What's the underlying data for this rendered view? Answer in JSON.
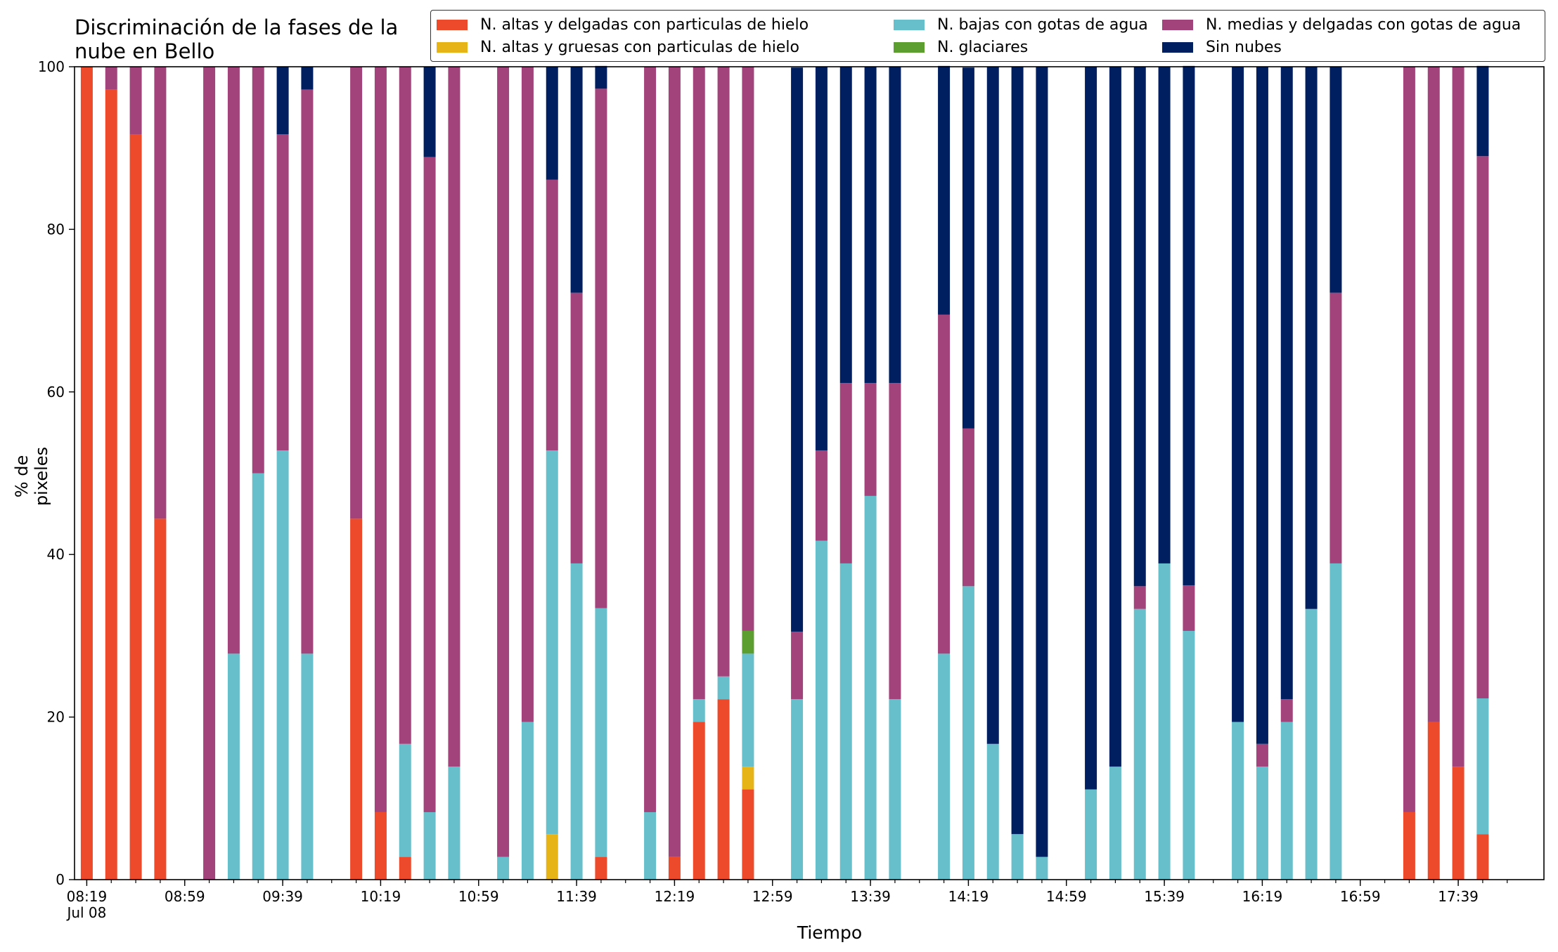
{
  "chart_data": {
    "type": "bar",
    "stacked": true,
    "title": "Discriminación de la fases de la nube en Bello",
    "xlabel": "Tiempo",
    "ylabel": "% de pixeles",
    "ylim": [
      0,
      100
    ],
    "yticks": [
      "0",
      "20",
      "40",
      "60",
      "80",
      "100"
    ],
    "xtick_labels": [
      "08:19",
      "08:59",
      "09:39",
      "10:19",
      "10:59",
      "11:39",
      "12:19",
      "12:59",
      "13:39",
      "14:19",
      "14:59",
      "15:39",
      "16:19",
      "16:59",
      "17:39"
    ],
    "date_label": "Jul 08",
    "legend_position": "top-right",
    "series_keys": [
      "alta_delg",
      "alta_grue",
      "baja",
      "glaciar",
      "media",
      "sin"
    ],
    "series": [
      {
        "key": "alta_delg",
        "name": "N. altas y delgadas con particulas de hielo",
        "color": "#ed4a2c"
      },
      {
        "key": "baja",
        "name": "N. bajas con gotas de agua",
        "color": "#67bfcb"
      },
      {
        "key": "media",
        "name": "N. medias y delgadas con gotas de agua",
        "color": "#a3437b"
      },
      {
        "key": "alta_grue",
        "name": "N. altas y gruesas con particulas de hielo",
        "color": "#e7b418"
      },
      {
        "key": "glaciar",
        "name": "N. glaciares",
        "color": "#5c9e2f"
      },
      {
        "key": "sin",
        "name": "Sin nubes",
        "color": "#001f60"
      }
    ],
    "bars": [
      {
        "time": "08:19",
        "alta_delg": 100,
        "alta_grue": 0,
        "baja": 0,
        "glaciar": 0,
        "media": 0,
        "sin": 0
      },
      {
        "time": "08:29",
        "alta_delg": 97.2,
        "alta_grue": 0,
        "baja": 0,
        "glaciar": 0,
        "media": 2.8,
        "sin": 0
      },
      {
        "time": "08:39",
        "alta_delg": 91.7,
        "alta_grue": 0,
        "baja": 0,
        "glaciar": 0,
        "media": 8.3,
        "sin": 0
      },
      {
        "time": "08:49",
        "alta_delg": 44.4,
        "alta_grue": 0,
        "baja": 0,
        "glaciar": 0,
        "media": 55.6,
        "sin": 0
      },
      {
        "time": "09:09",
        "alta_delg": 0,
        "alta_grue": 0,
        "baja": 0,
        "glaciar": 0,
        "media": 100,
        "sin": 0
      },
      {
        "time": "09:19",
        "alta_delg": 0,
        "alta_grue": 0,
        "baja": 27.8,
        "glaciar": 0,
        "media": 72.2,
        "sin": 0
      },
      {
        "time": "09:29",
        "alta_delg": 0,
        "alta_grue": 0,
        "baja": 50,
        "glaciar": 0,
        "media": 50,
        "sin": 0
      },
      {
        "time": "09:39",
        "alta_delg": 0,
        "alta_grue": 0,
        "baja": 52.8,
        "glaciar": 0,
        "media": 38.9,
        "sin": 8.3
      },
      {
        "time": "09:49",
        "alta_delg": 0,
        "alta_grue": 0,
        "baja": 27.8,
        "glaciar": 0,
        "media": 69.4,
        "sin": 2.8
      },
      {
        "time": "10:09",
        "alta_delg": 44.4,
        "alta_grue": 0,
        "baja": 0,
        "glaciar": 0,
        "media": 55.6,
        "sin": 0
      },
      {
        "time": "10:19",
        "alta_delg": 8.3,
        "alta_grue": 0,
        "baja": 0,
        "glaciar": 0,
        "media": 91.7,
        "sin": 0
      },
      {
        "time": "10:29",
        "alta_delg": 2.8,
        "alta_grue": 0,
        "baja": 13.9,
        "glaciar": 0,
        "media": 83.3,
        "sin": 0
      },
      {
        "time": "10:39",
        "alta_delg": 0,
        "alta_grue": 0,
        "baja": 8.3,
        "glaciar": 0,
        "media": 80.6,
        "sin": 11.1
      },
      {
        "time": "10:49",
        "alta_delg": 0,
        "alta_grue": 0,
        "baja": 13.9,
        "glaciar": 0,
        "media": 86.1,
        "sin": 0
      },
      {
        "time": "11:09",
        "alta_delg": 0,
        "alta_grue": 0,
        "baja": 2.8,
        "glaciar": 0,
        "media": 97.2,
        "sin": 0
      },
      {
        "time": "11:19",
        "alta_delg": 0,
        "alta_grue": 0,
        "baja": 19.4,
        "glaciar": 0,
        "media": 80.6,
        "sin": 0
      },
      {
        "time": "11:29",
        "alta_delg": 0,
        "alta_grue": 5.6,
        "baja": 47.2,
        "glaciar": 0,
        "media": 33.3,
        "sin": 13.9
      },
      {
        "time": "11:39",
        "alta_delg": 0,
        "alta_grue": 0,
        "baja": 38.9,
        "glaciar": 0,
        "media": 33.3,
        "sin": 27.8
      },
      {
        "time": "11:49",
        "alta_delg": 2.8,
        "alta_grue": 0,
        "baja": 30.6,
        "glaciar": 0,
        "media": 63.9,
        "sin": 2.8
      },
      {
        "time": "12:09",
        "alta_delg": 0,
        "alta_grue": 0,
        "baja": 8.3,
        "glaciar": 0,
        "media": 91.7,
        "sin": 0
      },
      {
        "time": "12:19",
        "alta_delg": 2.8,
        "alta_grue": 0,
        "baja": 0,
        "glaciar": 0,
        "media": 97.2,
        "sin": 0
      },
      {
        "time": "12:29",
        "alta_delg": 19.4,
        "alta_grue": 0,
        "baja": 2.8,
        "glaciar": 0,
        "media": 77.8,
        "sin": 0
      },
      {
        "time": "12:39",
        "alta_delg": 22.2,
        "alta_grue": 0,
        "baja": 2.8,
        "glaciar": 0,
        "media": 75,
        "sin": 0
      },
      {
        "time": "12:49",
        "alta_delg": 11.1,
        "alta_grue": 2.8,
        "baja": 13.9,
        "glaciar": 2.8,
        "media": 69.4,
        "sin": 0
      },
      {
        "time": "13:09",
        "alta_delg": 0,
        "alta_grue": 0,
        "baja": 22.2,
        "glaciar": 0,
        "media": 8.3,
        "sin": 69.4
      },
      {
        "time": "13:19",
        "alta_delg": 0,
        "alta_grue": 0,
        "baja": 41.7,
        "glaciar": 0,
        "media": 11.1,
        "sin": 47.2
      },
      {
        "time": "13:29",
        "alta_delg": 0,
        "alta_grue": 0,
        "baja": 38.9,
        "glaciar": 0,
        "media": 22.2,
        "sin": 38.9
      },
      {
        "time": "13:39",
        "alta_delg": 0,
        "alta_grue": 0,
        "baja": 47.2,
        "glaciar": 0,
        "media": 13.9,
        "sin": 38.9
      },
      {
        "time": "13:49",
        "alta_delg": 0,
        "alta_grue": 0,
        "baja": 22.2,
        "glaciar": 0,
        "media": 38.9,
        "sin": 38.9
      },
      {
        "time": "14:09",
        "alta_delg": 0,
        "alta_grue": 0,
        "baja": 27.8,
        "glaciar": 0,
        "media": 41.7,
        "sin": 30.6
      },
      {
        "time": "14:19",
        "alta_delg": 0,
        "alta_grue": 0,
        "baja": 36.1,
        "glaciar": 0,
        "media": 19.4,
        "sin": 44.4
      },
      {
        "time": "14:29",
        "alta_delg": 0,
        "alta_grue": 0,
        "baja": 16.7,
        "glaciar": 0,
        "media": 0,
        "sin": 83.3
      },
      {
        "time": "14:39",
        "alta_delg": 0,
        "alta_grue": 0,
        "baja": 5.6,
        "glaciar": 0,
        "media": 0,
        "sin": 94.4
      },
      {
        "time": "14:49",
        "alta_delg": 0,
        "alta_grue": 0,
        "baja": 2.8,
        "glaciar": 0,
        "media": 0,
        "sin": 97.2
      },
      {
        "time": "15:09",
        "alta_delg": 0,
        "alta_grue": 0,
        "baja": 11.1,
        "glaciar": 0,
        "media": 0,
        "sin": 88.9
      },
      {
        "time": "15:19",
        "alta_delg": 0,
        "alta_grue": 0,
        "baja": 13.9,
        "glaciar": 0,
        "media": 0,
        "sin": 86.1
      },
      {
        "time": "15:29",
        "alta_delg": 0,
        "alta_grue": 0,
        "baja": 33.3,
        "glaciar": 0,
        "media": 2.8,
        "sin": 63.9
      },
      {
        "time": "15:39",
        "alta_delg": 0,
        "alta_grue": 0,
        "baja": 38.9,
        "glaciar": 0,
        "media": 0,
        "sin": 61.1
      },
      {
        "time": "15:49",
        "alta_delg": 0,
        "alta_grue": 0,
        "baja": 30.6,
        "glaciar": 0,
        "media": 5.6,
        "sin": 63.9
      },
      {
        "time": "16:09",
        "alta_delg": 0,
        "alta_grue": 0,
        "baja": 19.4,
        "glaciar": 0,
        "media": 0,
        "sin": 80.6
      },
      {
        "time": "16:19",
        "alta_delg": 0,
        "alta_grue": 0,
        "baja": 13.9,
        "glaciar": 0,
        "media": 2.8,
        "sin": 83.3
      },
      {
        "time": "16:29",
        "alta_delg": 0,
        "alta_grue": 0,
        "baja": 19.4,
        "glaciar": 0,
        "media": 2.8,
        "sin": 77.8
      },
      {
        "time": "16:39",
        "alta_delg": 0,
        "alta_grue": 0,
        "baja": 33.3,
        "glaciar": 0,
        "media": 0,
        "sin": 66.7
      },
      {
        "time": "16:49",
        "alta_delg": 0,
        "alta_grue": 0,
        "baja": 38.9,
        "glaciar": 0,
        "media": 33.3,
        "sin": 27.8
      },
      {
        "time": "17:19",
        "alta_delg": 8.3,
        "alta_grue": 0,
        "baja": 0,
        "glaciar": 0,
        "media": 91.7,
        "sin": 0
      },
      {
        "time": "17:29",
        "alta_delg": 19.4,
        "alta_grue": 0,
        "baja": 0,
        "glaciar": 0,
        "media": 80.6,
        "sin": 0
      },
      {
        "time": "17:39",
        "alta_delg": 13.9,
        "alta_grue": 0,
        "baja": 0,
        "glaciar": 0,
        "media": 86.1,
        "sin": 0
      },
      {
        "time": "17:49",
        "alta_delg": 5.6,
        "alta_grue": 0,
        "baja": 16.7,
        "glaciar": 0,
        "media": 66.7,
        "sin": 11.1
      }
    ]
  }
}
